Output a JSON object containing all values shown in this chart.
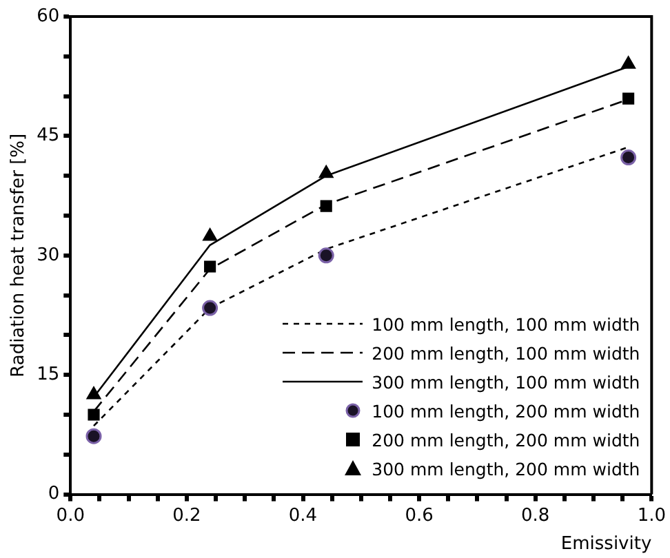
{
  "chart_data": {
    "type": "line",
    "xlabel": "Emissivity",
    "ylabel": "Radiation heat transfer [%]",
    "xlim": [
      0,
      1
    ],
    "ylim": [
      0,
      60
    ],
    "xticks": [
      {
        "value": 0,
        "label": "0.0"
      },
      {
        "value": 0.05,
        "label": null
      },
      {
        "value": 0.1,
        "label": null
      },
      {
        "value": 0.15,
        "label": null
      },
      {
        "value": 0.2,
        "label": "0.2"
      },
      {
        "value": 0.25,
        "label": null
      },
      {
        "value": 0.3,
        "label": null
      },
      {
        "value": 0.35,
        "label": null
      },
      {
        "value": 0.4,
        "label": "0.4"
      },
      {
        "value": 0.45,
        "label": null
      },
      {
        "value": 0.5,
        "label": null
      },
      {
        "value": 0.55,
        "label": null
      },
      {
        "value": 0.6,
        "label": "0.6"
      },
      {
        "value": 0.65,
        "label": null
      },
      {
        "value": 0.7,
        "label": null
      },
      {
        "value": 0.75,
        "label": null
      },
      {
        "value": 0.8,
        "label": "0.8"
      },
      {
        "value": 0.85,
        "label": null
      },
      {
        "value": 0.9,
        "label": null
      },
      {
        "value": 0.95,
        "label": null
      },
      {
        "value": 1,
        "label": "1.0"
      }
    ],
    "yticks": [
      0,
      {
        "value": 5,
        "label": null
      },
      {
        "value": 10,
        "label": null
      },
      15,
      {
        "value": 20,
        "label": null
      },
      {
        "value": 25,
        "label": null
      },
      30,
      {
        "value": 35,
        "label": null
      },
      {
        "value": 40,
        "label": null
      },
      45,
      {
        "value": 50,
        "label": null
      },
      {
        "value": 55,
        "label": null
      },
      60
    ],
    "grid": false,
    "legend": "bottom right",
    "x": [
      0.04,
      0.24,
      0.44,
      0.96
    ],
    "series": [
      {
        "name": "100 mm length, 100 mm width",
        "color": "#000000",
        "line_style": "dotted",
        "marker": "none",
        "values": [
          8.6,
          23.4,
          30.8,
          43.6
        ]
      },
      {
        "name": "200 mm length, 100 mm width",
        "color": "#000000",
        "line_style": "dashed",
        "marker": "none",
        "values": [
          10.4,
          28.3,
          36.4,
          49.6
        ]
      },
      {
        "name": "300 mm length, 100 mm width",
        "color": "#000000",
        "line_style": "solid",
        "marker": "none",
        "values": [
          12.2,
          31.3,
          40.0,
          53.7
        ]
      },
      {
        "name": "100 mm length, 200 mm width",
        "type": "scatter",
        "color": "#1a1226",
        "marker": "circle",
        "values": [
          7.3,
          23.4,
          30.0,
          42.3
        ]
      },
      {
        "name": "200 mm length, 200 mm width",
        "type": "scatter",
        "color": "#000000",
        "marker": "square",
        "values": [
          10.0,
          28.6,
          36.2,
          49.7
        ]
      },
      {
        "name": "300 mm length, 200 mm width",
        "type": "scatter",
        "color": "#000000",
        "marker": "triangle",
        "values": [
          12.5,
          32.4,
          40.3,
          54.0
        ]
      }
    ]
  }
}
